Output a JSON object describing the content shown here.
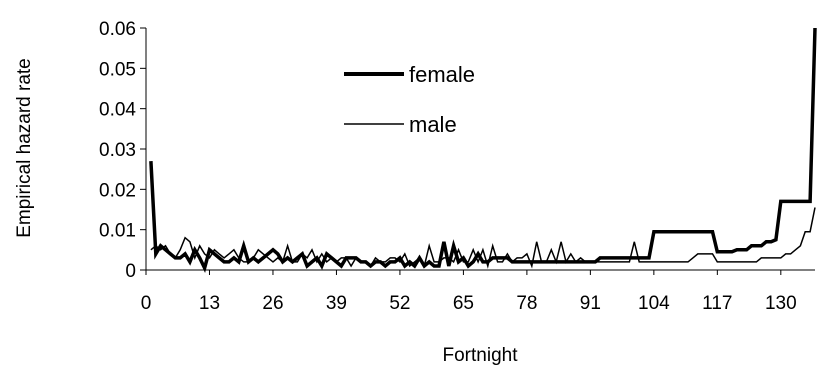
{
  "chart_data": {
    "type": "line",
    "title": "",
    "xlabel": "Fortnight",
    "ylabel": "Empirical hazard rate",
    "xlim": [
      0,
      137
    ],
    "ylim": [
      0,
      0.06
    ],
    "x_ticks": [
      0,
      13,
      26,
      39,
      52,
      65,
      78,
      91,
      104,
      117,
      130
    ],
    "y_ticks": [
      "0",
      "0.01",
      "0.02",
      "0.03",
      "0.04",
      "0.05",
      "0.06"
    ],
    "grid": false,
    "legend_position": "upper-middle",
    "series": [
      {
        "name": "female",
        "color": "#000000",
        "style": "thick",
        "x": [
          1,
          2,
          3,
          4,
          5,
          6,
          7,
          8,
          9,
          10,
          11,
          12,
          13,
          14,
          15,
          16,
          17,
          18,
          19,
          20,
          21,
          22,
          23,
          24,
          25,
          26,
          27,
          28,
          29,
          30,
          31,
          32,
          33,
          34,
          35,
          36,
          37,
          38,
          39,
          40,
          41,
          42,
          43,
          44,
          45,
          46,
          47,
          48,
          49,
          50,
          51,
          52,
          53,
          54,
          55,
          56,
          57,
          58,
          59,
          60,
          61,
          62,
          63,
          64,
          65,
          66,
          67,
          68,
          69,
          70,
          71,
          72,
          73,
          74,
          75,
          76,
          77,
          78,
          79,
          80,
          81,
          82,
          83,
          84,
          85,
          86,
          87,
          88,
          89,
          90,
          91,
          92,
          93,
          94,
          95,
          96,
          97,
          98,
          99,
          100,
          101,
          102,
          103,
          104,
          105,
          106,
          107,
          108,
          109,
          110,
          111,
          112,
          113,
          114,
          115,
          116,
          117,
          118,
          119,
          120,
          121,
          122,
          123,
          124,
          125,
          126,
          127,
          128,
          129,
          130,
          131,
          132,
          133,
          134,
          135,
          136,
          137
        ],
        "values": [
          0.027,
          0.004,
          0.006,
          0.005,
          0.004,
          0.003,
          0.003,
          0.004,
          0.002,
          0.005,
          0.003,
          0.0005,
          0.005,
          0.004,
          0.003,
          0.002,
          0.002,
          0.003,
          0.002,
          0.006,
          0.002,
          0.003,
          0.002,
          0.003,
          0.004,
          0.005,
          0.004,
          0.002,
          0.003,
          0.002,
          0.003,
          0.004,
          0.001,
          0.002,
          0.003,
          0.001,
          0.004,
          0.003,
          0.002,
          0.001,
          0.003,
          0.003,
          0.003,
          0.002,
          0.002,
          0.001,
          0.002,
          0.002,
          0.001,
          0.002,
          0.002,
          0.003,
          0.001,
          0.002,
          0.001,
          0.003,
          0.001,
          0.002,
          0.001,
          0.001,
          0.007,
          0.001,
          0.006,
          0.002,
          0.003,
          0.001,
          0.002,
          0.004,
          0.002,
          0.002,
          0.003,
          0.003,
          0.003,
          0.003,
          0.002,
          0.002,
          0.002,
          0.002,
          0.002,
          0.002,
          0.002,
          0.002,
          0.002,
          0.002,
          0.002,
          0.002,
          0.002,
          0.002,
          0.002,
          0.002,
          0.002,
          0.002,
          0.003,
          0.003,
          0.003,
          0.003,
          0.003,
          0.003,
          0.003,
          0.003,
          0.003,
          0.003,
          0.003,
          0.0095,
          0.0095,
          0.0095,
          0.0095,
          0.0095,
          0.0095,
          0.0095,
          0.0095,
          0.0095,
          0.0095,
          0.0095,
          0.0095,
          0.0095,
          0.0045,
          0.0045,
          0.0045,
          0.0045,
          0.005,
          0.005,
          0.005,
          0.006,
          0.006,
          0.006,
          0.007,
          0.007,
          0.0075,
          0.017,
          0.017,
          0.017,
          0.017,
          0.017,
          0.017,
          0.017,
          0.06
        ]
      },
      {
        "name": "male",
        "color": "#000000",
        "style": "thin",
        "x": [
          1,
          2,
          3,
          4,
          5,
          6,
          7,
          8,
          9,
          10,
          11,
          12,
          13,
          14,
          15,
          16,
          17,
          18,
          19,
          20,
          21,
          22,
          23,
          24,
          25,
          26,
          27,
          28,
          29,
          30,
          31,
          32,
          33,
          34,
          35,
          36,
          37,
          38,
          39,
          40,
          41,
          42,
          43,
          44,
          45,
          46,
          47,
          48,
          49,
          50,
          51,
          52,
          53,
          54,
          55,
          56,
          57,
          58,
          59,
          60,
          61,
          62,
          63,
          64,
          65,
          66,
          67,
          68,
          69,
          70,
          71,
          72,
          73,
          74,
          75,
          76,
          77,
          78,
          79,
          80,
          81,
          82,
          83,
          84,
          85,
          86,
          87,
          88,
          89,
          90,
          91,
          92,
          93,
          94,
          95,
          96,
          97,
          98,
          99,
          100,
          101,
          102,
          103,
          104,
          105,
          106,
          107,
          108,
          109,
          110,
          111,
          112,
          113,
          114,
          115,
          116,
          117,
          118,
          119,
          120,
          121,
          122,
          123,
          124,
          125,
          126,
          127,
          128,
          129,
          130,
          131,
          132,
          133,
          134,
          135,
          136,
          137
        ],
        "values": [
          0.005,
          0.006,
          0.005,
          0.006,
          0.004,
          0.003,
          0.005,
          0.008,
          0.007,
          0.003,
          0.006,
          0.004,
          0.003,
          0.005,
          0.004,
          0.003,
          0.004,
          0.005,
          0.003,
          0.002,
          0.002,
          0.003,
          0.005,
          0.004,
          0.003,
          0.002,
          0.003,
          0.002,
          0.006,
          0.002,
          0.002,
          0.004,
          0.003,
          0.005,
          0.002,
          0.004,
          0.002,
          0.003,
          0.002,
          0.003,
          0.003,
          0.001,
          0.003,
          0.002,
          0.002,
          0.001,
          0.003,
          0.002,
          0.002,
          0.003,
          0.003,
          0.002,
          0.004,
          0.001,
          0.002,
          0.003,
          0.001,
          0.006,
          0.002,
          0.002,
          0.003,
          0.003,
          0.002,
          0.005,
          0.002,
          0.002,
          0.005,
          0.002,
          0.005,
          0.001,
          0.006,
          0.002,
          0.002,
          0.004,
          0.002,
          0.003,
          0.003,
          0.004,
          0.001,
          0.007,
          0.002,
          0.002,
          0.005,
          0.002,
          0.007,
          0.002,
          0.004,
          0.002,
          0.003,
          0.002,
          0.002,
          0.002,
          0.002,
          0.002,
          0.002,
          0.002,
          0.002,
          0.002,
          0.002,
          0.007,
          0.002,
          0.002,
          0.002,
          0.002,
          0.002,
          0.002,
          0.002,
          0.002,
          0.002,
          0.002,
          0.002,
          0.003,
          0.004,
          0.004,
          0.004,
          0.004,
          0.002,
          0.002,
          0.002,
          0.002,
          0.002,
          0.002,
          0.002,
          0.002,
          0.002,
          0.003,
          0.003,
          0.003,
          0.003,
          0.003,
          0.004,
          0.004,
          0.005,
          0.006,
          0.0095,
          0.0095,
          0.0155
        ]
      }
    ]
  }
}
